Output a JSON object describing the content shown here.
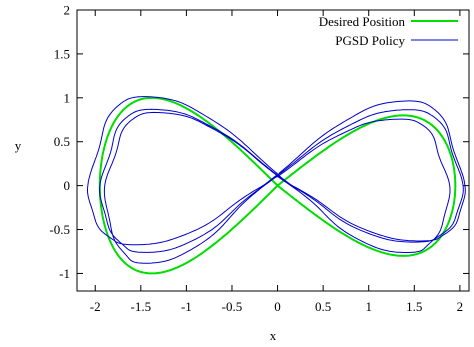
{
  "chart_data": {
    "type": "line",
    "title": "",
    "xlabel": "x",
    "ylabel": "y",
    "xlim": [
      -2.2,
      2.1
    ],
    "ylim": [
      -1.2,
      2.0
    ],
    "grid": false,
    "legend_position": "top-right",
    "xticks": [
      "-2",
      "-1.5",
      "-1",
      "-0.5",
      "0",
      "0.5",
      "1",
      "1.5",
      "2"
    ],
    "xtick_values": [
      -2,
      -1.5,
      -1,
      -0.5,
      0,
      0.5,
      1,
      1.5,
      2
    ],
    "yticks": [
      "2",
      "1.5",
      "1",
      "0.5",
      "0",
      "-0.5",
      "-1"
    ],
    "ytick_values": [
      2,
      1.5,
      1,
      0.5,
      0,
      -0.5,
      -1
    ],
    "series": [
      {
        "name": "Desired Position",
        "color": "#00dd00",
        "shape": "figure-eight",
        "x_amplitude": 1.95,
        "y_amplitude": 0.8,
        "y_amplitude_left": 1.0
      },
      {
        "name": "PGSD Policy",
        "color": "#0000cc",
        "shape": "figure-eight",
        "loops": 3,
        "x_amplitude_range": [
          1.85,
          2.05
        ],
        "y_peak_range": [
          0.85,
          1.08
        ],
        "y_trough_range": [
          -0.93,
          -0.7
        ]
      }
    ]
  }
}
